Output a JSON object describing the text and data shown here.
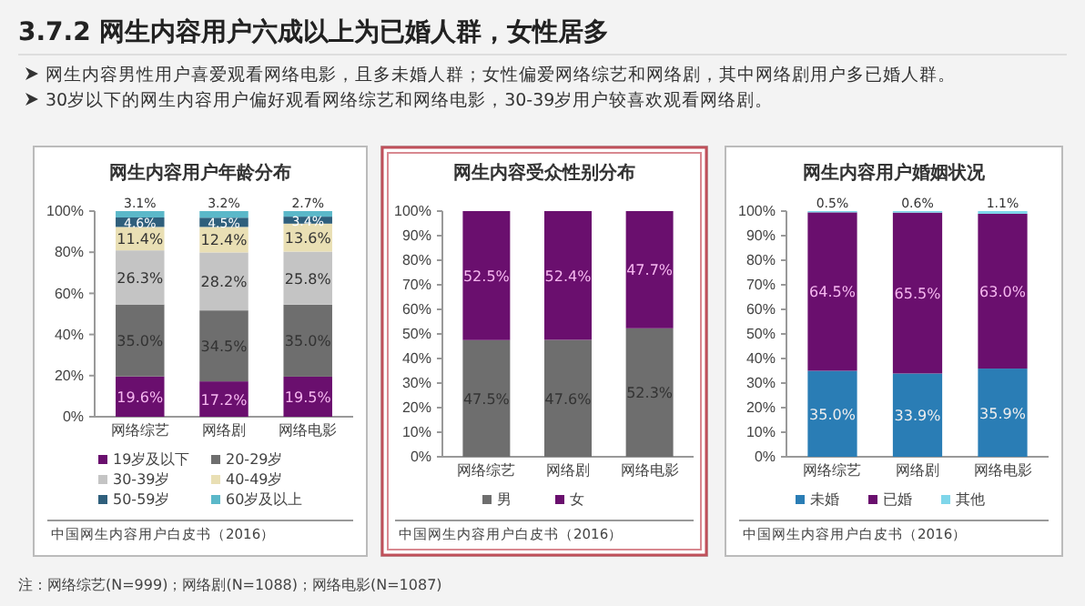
{
  "chart_data": [
    {
      "type": "other",
      "title": "3.7.2 网生内容用户六成以上为已婚人群，女性居多",
      "annotations": [
        "网生内容男性用户喜爱观看网络电影，且多未婚人群；女性偏爱网络综艺和网络剧，其中网络剧用户多已婚人群。",
        "30岁以下的网生内容用户偏好观看网络综艺和网络电影，30-39岁用户较喜欢观看网络剧。",
        "注：网络综艺(N=999)；网络剧(N=1088)；网络电影(N=1087)"
      ]
    },
    {
      "type": "bar",
      "stacked": true,
      "title": "网生内容用户年龄分布",
      "categories": [
        "网络综艺",
        "网络剧",
        "网络电影"
      ],
      "series": [
        {
          "name": "19岁及以下",
          "color": "#6a0f6e",
          "values": [
            19.6,
            17.2,
            19.5
          ],
          "value_labels": [
            "19.6%",
            "17.2%",
            "19.5%"
          ]
        },
        {
          "name": "20-29岁",
          "color": "#6e6e6e",
          "values": [
            35.0,
            34.5,
            35.0
          ],
          "value_labels": [
            "35.0%",
            "34.5%",
            "35.0%"
          ]
        },
        {
          "name": "30-39岁",
          "color": "#c4c4c4",
          "values": [
            26.3,
            28.2,
            25.8
          ],
          "value_labels": [
            "26.3%",
            "28.2%",
            "25.8%"
          ]
        },
        {
          "name": "40-49岁",
          "color": "#e9dfb4",
          "values": [
            11.4,
            12.4,
            13.6
          ],
          "value_labels": [
            "11.4%",
            "12.4%",
            "13.6%"
          ]
        },
        {
          "name": "50-59岁",
          "color": "#2f5f7c",
          "values": [
            4.6,
            4.5,
            3.4
          ],
          "value_labels": [
            "4.6%",
            "4.5%",
            "3.4%"
          ]
        },
        {
          "name": "60岁及以上",
          "color": "#5bb8c9",
          "values": [
            3.1,
            3.2,
            2.7
          ],
          "value_labels": [
            "3.1%",
            "3.2%",
            "2.7%"
          ]
        }
      ],
      "ylim": [
        0,
        100
      ],
      "yticks": [
        {
          "value": 0,
          "label": "0%"
        },
        {
          "value": 20,
          "label": "20%"
        },
        {
          "value": 40,
          "label": "40%"
        },
        {
          "value": 60,
          "label": "60%"
        },
        {
          "value": 80,
          "label": "80%"
        },
        {
          "value": 100,
          "label": "100%"
        }
      ],
      "legend": "bottom",
      "annotations": [
        "中国网生内容用户白皮书（2016）"
      ]
    },
    {
      "type": "bar",
      "stacked": true,
      "title": "网生内容受众性别分布",
      "categories": [
        "网络综艺",
        "网络剧",
        "网络电影"
      ],
      "series": [
        {
          "name": "男",
          "color": "#6e6e6e",
          "values": [
            47.5,
            47.6,
            52.3
          ],
          "value_labels": [
            "47.5%",
            "47.6%",
            "52.3%"
          ]
        },
        {
          "name": "女",
          "color": "#6a0f6e",
          "values": [
            52.5,
            52.4,
            47.7
          ],
          "value_labels": [
            "52.5%",
            "52.4%",
            "47.7%"
          ]
        }
      ],
      "ylim": [
        0,
        100
      ],
      "yticks": [
        {
          "value": 0,
          "label": "0%"
        },
        {
          "value": 10,
          "label": "10%"
        },
        {
          "value": 20,
          "label": "20%"
        },
        {
          "value": 30,
          "label": "30%"
        },
        {
          "value": 40,
          "label": "40%"
        },
        {
          "value": 50,
          "label": "50%"
        },
        {
          "value": 60,
          "label": "60%"
        },
        {
          "value": 70,
          "label": "70%"
        },
        {
          "value": 80,
          "label": "80%"
        },
        {
          "value": 90,
          "label": "90%"
        },
        {
          "value": 100,
          "label": "100%"
        }
      ],
      "legend": "bottom",
      "annotations": [
        "中国网生内容用户白皮书（2016）"
      ]
    },
    {
      "type": "bar",
      "stacked": true,
      "title": "网生内容用户婚姻状况",
      "categories": [
        "网络综艺",
        "网络剧",
        "网络电影"
      ],
      "series": [
        {
          "name": "未婚",
          "color": "#2a7db5",
          "values": [
            35.0,
            33.9,
            35.9
          ],
          "value_labels": [
            "35.0%",
            "33.9%",
            "35.9%"
          ]
        },
        {
          "name": "已婚",
          "color": "#6a0f6e",
          "values": [
            64.5,
            65.5,
            63.0
          ],
          "value_labels": [
            "64.5%",
            "65.5%",
            "63.0%"
          ]
        },
        {
          "name": "其他",
          "color": "#7fd6ea",
          "values": [
            0.5,
            0.6,
            1.1
          ],
          "value_labels": [
            "0.5%",
            "0.6%",
            "1.1%"
          ]
        }
      ],
      "ylim": [
        0,
        100
      ],
      "yticks": [
        {
          "value": 0,
          "label": "0%"
        },
        {
          "value": 10,
          "label": "10%"
        },
        {
          "value": 20,
          "label": "20%"
        },
        {
          "value": 30,
          "label": "30%"
        },
        {
          "value": 40,
          "label": "40%"
        },
        {
          "value": 50,
          "label": "50%"
        },
        {
          "value": 60,
          "label": "60%"
        },
        {
          "value": 70,
          "label": "70%"
        },
        {
          "value": 80,
          "label": "80%"
        },
        {
          "value": 90,
          "label": "90%"
        },
        {
          "value": 100,
          "label": "100%"
        }
      ],
      "legend": "bottom",
      "annotations": [
        "中国网生内容用户白皮书（2016）"
      ]
    }
  ]
}
